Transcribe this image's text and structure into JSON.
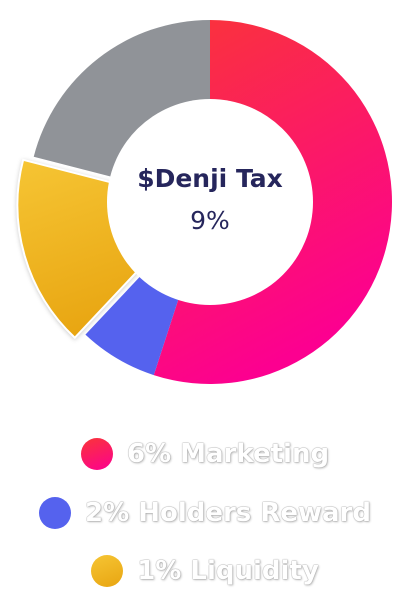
{
  "chart_data": {
    "type": "pie",
    "variant": "donut",
    "center_title": "$Denji Tax",
    "center_value": "9%",
    "slices": [
      {
        "label": "Marketing",
        "value": 55,
        "color_start": "#fa3538",
        "color_end": "#fc0090"
      },
      {
        "label": "Holders Reward",
        "value": 7,
        "color_start": "#5562ee",
        "color_end": "#5562ee"
      },
      {
        "label": "Liquidity",
        "value": 17,
        "color_start": "#f6c534",
        "color_end": "#e8a511",
        "exploded": true
      },
      {
        "label": "",
        "value": 21,
        "color_start": "#909398",
        "color_end": "#909398"
      }
    ]
  },
  "legend": [
    {
      "text": "6% Marketing",
      "color_start": "#fa3538",
      "color_end": "#fc0090"
    },
    {
      "text": "2% Holders Reward",
      "color_start": "#5562ee",
      "color_end": "#5562ee"
    },
    {
      "text": "1% Liquidity",
      "color_start": "#f6c534",
      "color_end": "#e8a511"
    }
  ]
}
